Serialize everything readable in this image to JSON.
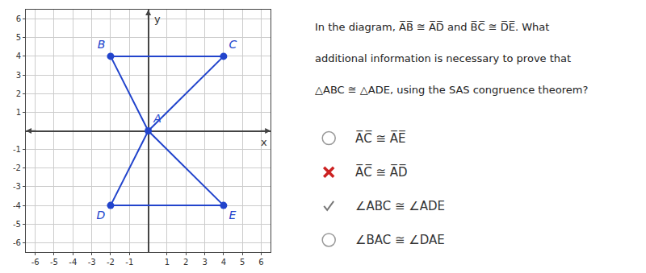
{
  "chart_data": {
    "type": "line",
    "xlabel": "x",
    "ylabel": "y",
    "series": [
      {
        "type": "line",
        "x": [
          -2,
          0,
          4,
          -2
        ],
        "y": [
          4,
          0,
          4,
          4
        ],
        "color": "#2244cc"
      },
      {
        "type": "line",
        "x": [
          -2,
          0,
          4,
          -2
        ],
        "y": [
          -4,
          0,
          -4,
          -4
        ],
        "color": "#2244cc"
      },
      {
        "type": "scatter",
        "x": [
          0,
          -2,
          4,
          -2,
          4
        ],
        "y": [
          0,
          4,
          4,
          -4,
          -4
        ],
        "labels": [
          "A",
          "B",
          "C",
          "D",
          "E"
        ],
        "color": "#2244cc"
      }
    ],
    "xlim": [
      -6.5,
      6.5
    ],
    "ylim": [
      -6.5,
      6.5
    ],
    "xticks": [
      -6,
      -5,
      -4,
      -3,
      -2,
      -1,
      1,
      2,
      3,
      4,
      5,
      6
    ],
    "yticks": [
      -6,
      -5,
      -4,
      -3,
      -2,
      -1,
      1,
      2,
      3,
      4,
      5,
      6
    ],
    "grid": true,
    "annotations": [
      "In the diagram, A̅B̅ ≅ A̅D̅ and B̅C̅ ≅ D̅E̅. What",
      "additional information is necessary to prove that",
      "△ABC ≅ △ADE, using the SAS congruence theorem?"
    ],
    "options": [
      {
        "text": "A̅C̅ ≅ A̅E̅",
        "marker": "circle",
        "color": "#999999"
      },
      {
        "text": "A̅C̅ ≅ A̅D̅",
        "marker": "x",
        "color": "#cc2222"
      },
      {
        "text": "∠ABC ≅ ∠ADE",
        "marker": "check",
        "color": "#777777"
      },
      {
        "text": "∠BAC ≅ ∠DAE",
        "marker": "circle",
        "color": "#999999"
      }
    ]
  }
}
